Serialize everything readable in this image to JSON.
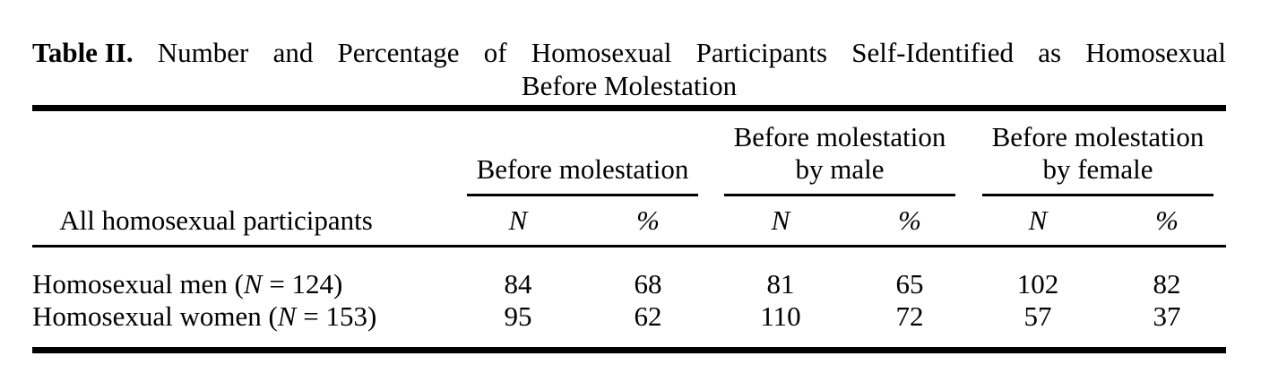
{
  "caption": {
    "label": "Table II.",
    "words_line1": [
      "Number",
      "and",
      "Percentage",
      "of",
      "Homosexual",
      "Participants",
      "Self-Identified",
      "as",
      "Homosexual"
    ],
    "line2": "Before Molestation"
  },
  "table": {
    "stub_header": "All homosexual participants",
    "groups": [
      {
        "line1": "",
        "line2": "Before molestation"
      },
      {
        "line1": "Before molestation",
        "line2": "by male"
      },
      {
        "line1": "Before molestation",
        "line2": "by female"
      }
    ],
    "col_labels": [
      "N",
      "%",
      "N",
      "%",
      "N",
      "%"
    ],
    "rows": [
      {
        "label_pre": "Homosexual men (",
        "label_var": "N",
        "label_post": " = 124)",
        "cells": [
          "84",
          "68",
          "81",
          "65",
          "102",
          "82"
        ]
      },
      {
        "label_pre": "Homosexual women (",
        "label_var": "N",
        "label_post": " = 153)",
        "cells": [
          "95",
          "62",
          "110",
          "72",
          "57",
          "37"
        ]
      }
    ]
  }
}
